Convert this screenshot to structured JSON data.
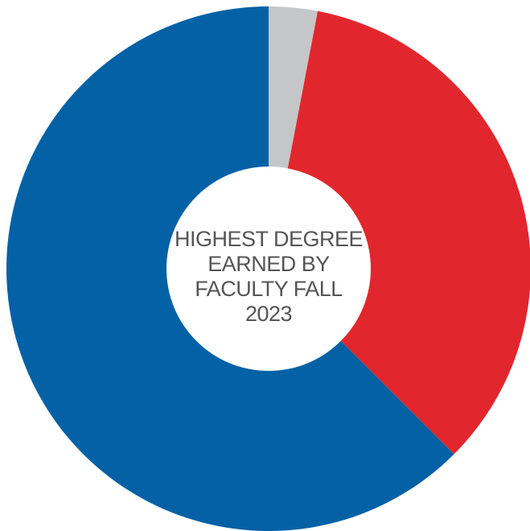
{
  "chart_data": {
    "type": "pie",
    "variant": "donut",
    "title_lines": [
      "HIGHEST DEGREE",
      "EARNED BY",
      "FACULTY FALL",
      "2023"
    ],
    "slices": [
      {
        "value": 3.0,
        "color": "#c4c6c8"
      },
      {
        "value": 34.5,
        "color": "#e1272d"
      },
      {
        "value": 62.5,
        "color": "#0561a6"
      }
    ],
    "start_angle_deg": 0,
    "direction": "clockwise",
    "legend": "none"
  }
}
